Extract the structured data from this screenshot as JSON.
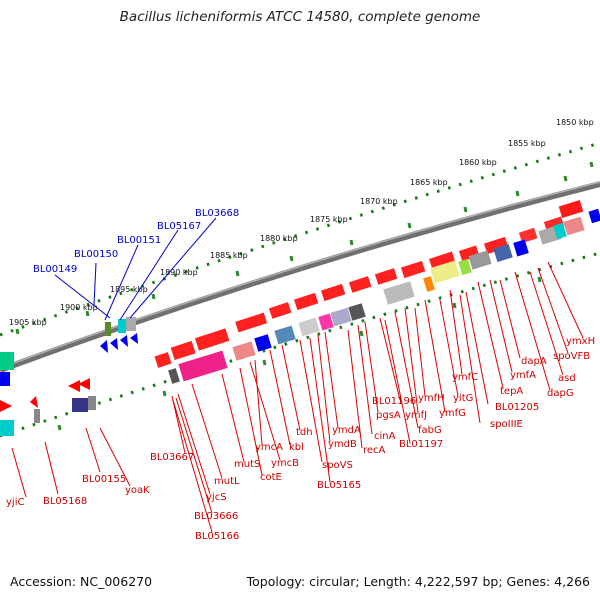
{
  "title": "Bacillus licheniformis ATCC 14580, complete genome",
  "footer": {
    "accession": "Accession: NC_006270",
    "summary": "Topology: circular; Length: 4,222,597 bp; Genes: 4,266"
  },
  "scale_labels": [
    "1850 kbp",
    "1855 kbp",
    "1860 kbp",
    "1865 kbp",
    "1870 kbp",
    "1875 kbp",
    "1880 kbp",
    "1885 kbp",
    "1890 kbp",
    "1895 kbp",
    "1900 kbp",
    "1905 kbp"
  ],
  "blue_labels": [
    "BL00149",
    "BL00150",
    "BL00151",
    "BL05167",
    "BL03668"
  ],
  "red_labels": [
    "ymxH",
    "spoVFB",
    "asd",
    "dapG",
    "dapA",
    "ymfA",
    "tepA",
    "ymfC",
    "BL01205",
    "spoIIIE",
    "yitG",
    "ymfG",
    "ymfH",
    "ymfJ",
    "fabG",
    "BL01196",
    "BL01197",
    "pgsA",
    "cinA",
    "recA",
    "ymdA",
    "ymdB",
    "BL05165",
    "spoVS",
    "tdh",
    "kbl",
    "ymcA",
    "ymcB",
    "cotE",
    "mutS",
    "mutL",
    "BL03667",
    "yjcS",
    "BL03666",
    "BL05166",
    "BL00155",
    "yoaK",
    "BL05168",
    "yjiC"
  ],
  "colors": {
    "red": "#ff0000",
    "label_red": "#cc0000",
    "label_blue": "#0000cc",
    "tick_green": "#1a7a1a",
    "backbone": "#808080"
  }
}
